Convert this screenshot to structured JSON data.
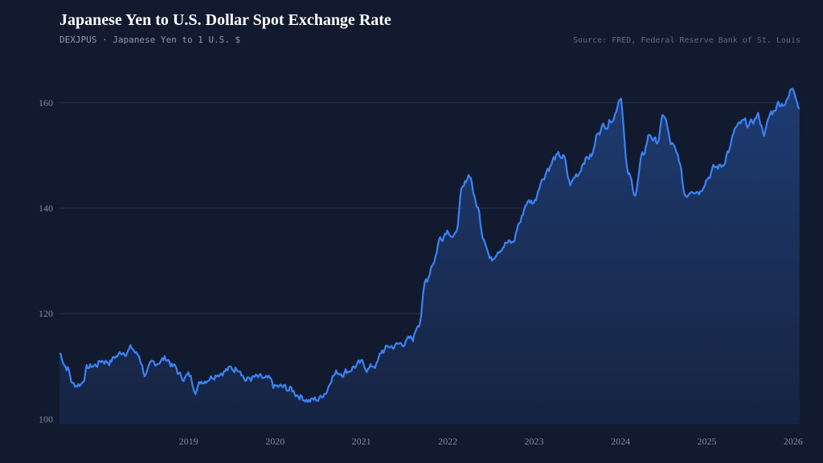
{
  "header": {
    "title": "Japanese Yen to U.S. Dollar Spot Exchange Rate",
    "subtitle": "DEXJPUS · Japanese Yen to 1 U.S. $",
    "source": "Source: FRED, Federal Reserve Bank of St. Louis"
  },
  "colors": {
    "background": "#111a2e",
    "line": "#3b82f6",
    "area_top": "#1e3a6e",
    "grid": "#26324a"
  },
  "chart_data": {
    "type": "area",
    "title": "Japanese Yen to U.S. Dollar Spot Exchange Rate",
    "subtitle": "DEXJPUS · Japanese Yen to 1 U.S. $",
    "xlabel": "",
    "ylabel": "",
    "ylim": [
      99,
      165
    ],
    "xlim": [
      "2018-01-01",
      "2026-08-01"
    ],
    "yticks": [
      100,
      120,
      140,
      160
    ],
    "xticks": [
      "2019",
      "2020",
      "2021",
      "2022",
      "2023",
      "2024",
      "2025",
      "2026"
    ],
    "grid": true,
    "legend": "none",
    "series": [
      {
        "name": "",
        "x": [
          "2018-01",
          "2018-02",
          "2018-03",
          "2018-04",
          "2018-05",
          "2018-06",
          "2018-07",
          "2018-08",
          "2018-09",
          "2018-10",
          "2018-11",
          "2018-12",
          "2019-01",
          "2019-02",
          "2019-03",
          "2019-04",
          "2019-05",
          "2019-06",
          "2019-07",
          "2019-08",
          "2019-09",
          "2019-10",
          "2019-11",
          "2019-12",
          "2020-01",
          "2020-02",
          "2020-03",
          "2020-04",
          "2020-05",
          "2020-06",
          "2020-07",
          "2020-08",
          "2020-09",
          "2020-10",
          "2020-11",
          "2020-12",
          "2021-01",
          "2021-02",
          "2021-03",
          "2021-04",
          "2021-05",
          "2021-06",
          "2021-07",
          "2021-08",
          "2021-09",
          "2021-10",
          "2021-11",
          "2021-12",
          "2022-01",
          "2022-02",
          "2022-03",
          "2022-04",
          "2022-05",
          "2022-06",
          "2022-07",
          "2022-08",
          "2022-09",
          "2022-10",
          "2022-11",
          "2022-12",
          "2023-01",
          "2023-02",
          "2023-03",
          "2023-04",
          "2023-05",
          "2023-06",
          "2023-07",
          "2023-08",
          "2023-09",
          "2023-10",
          "2023-11",
          "2023-12",
          "2024-01",
          "2024-02",
          "2024-03",
          "2024-04",
          "2024-05",
          "2024-06",
          "2024-07",
          "2024-08",
          "2024-09",
          "2024-10",
          "2024-11",
          "2024-12",
          "2025-01",
          "2025-02",
          "2025-03",
          "2025-04",
          "2025-05",
          "2025-06",
          "2025-07",
          "2025-08",
          "2025-09",
          "2025-10",
          "2025-11",
          "2025-12",
          "2026-01",
          "2026-02",
          "2026-03",
          "2026-04",
          "2026-05",
          "2026-06",
          "2026-07",
          "2026-08"
        ],
        "values": [
          112.5,
          110.0,
          106.5,
          106.8,
          109.8,
          110.2,
          111.2,
          111.0,
          112.0,
          113.0,
          113.4,
          112.0,
          108.5,
          110.2,
          111.2,
          111.5,
          109.8,
          108.0,
          108.2,
          106.0,
          107.5,
          108.2,
          109.0,
          109.3,
          109.4,
          110.0,
          107.5,
          107.8,
          107.5,
          107.2,
          106.0,
          105.9,
          105.6,
          104.9,
          104.1,
          103.5,
          103.8,
          105.4,
          108.5,
          109.0,
          109.2,
          110.1,
          110.3,
          109.7,
          110.4,
          113.0,
          113.8,
          114.0,
          114.7,
          115.0,
          118.5,
          126.2,
          130.0,
          134.5,
          136.2,
          134.5,
          143.2,
          146.5,
          140.5,
          134.8,
          130.2,
          132.6,
          133.5,
          133.2,
          137.3,
          141.2,
          141.3,
          145.5,
          147.8,
          149.6,
          149.7,
          144.5,
          146.5,
          149.5,
          150.0,
          155.0,
          156.0,
          157.5,
          161.5,
          146.3,
          143.0,
          149.5,
          154.0,
          152.5,
          157.5,
          152.0,
          149.5,
          142.5,
          144.0,
          143.5,
          146.0,
          147.5,
          148.0,
          151.0,
          155.0,
          156.0,
          155.8,
          157.5,
          154.5,
          158.0,
          160.0,
          160.2,
          163.0,
          159.0
        ]
      }
    ]
  }
}
